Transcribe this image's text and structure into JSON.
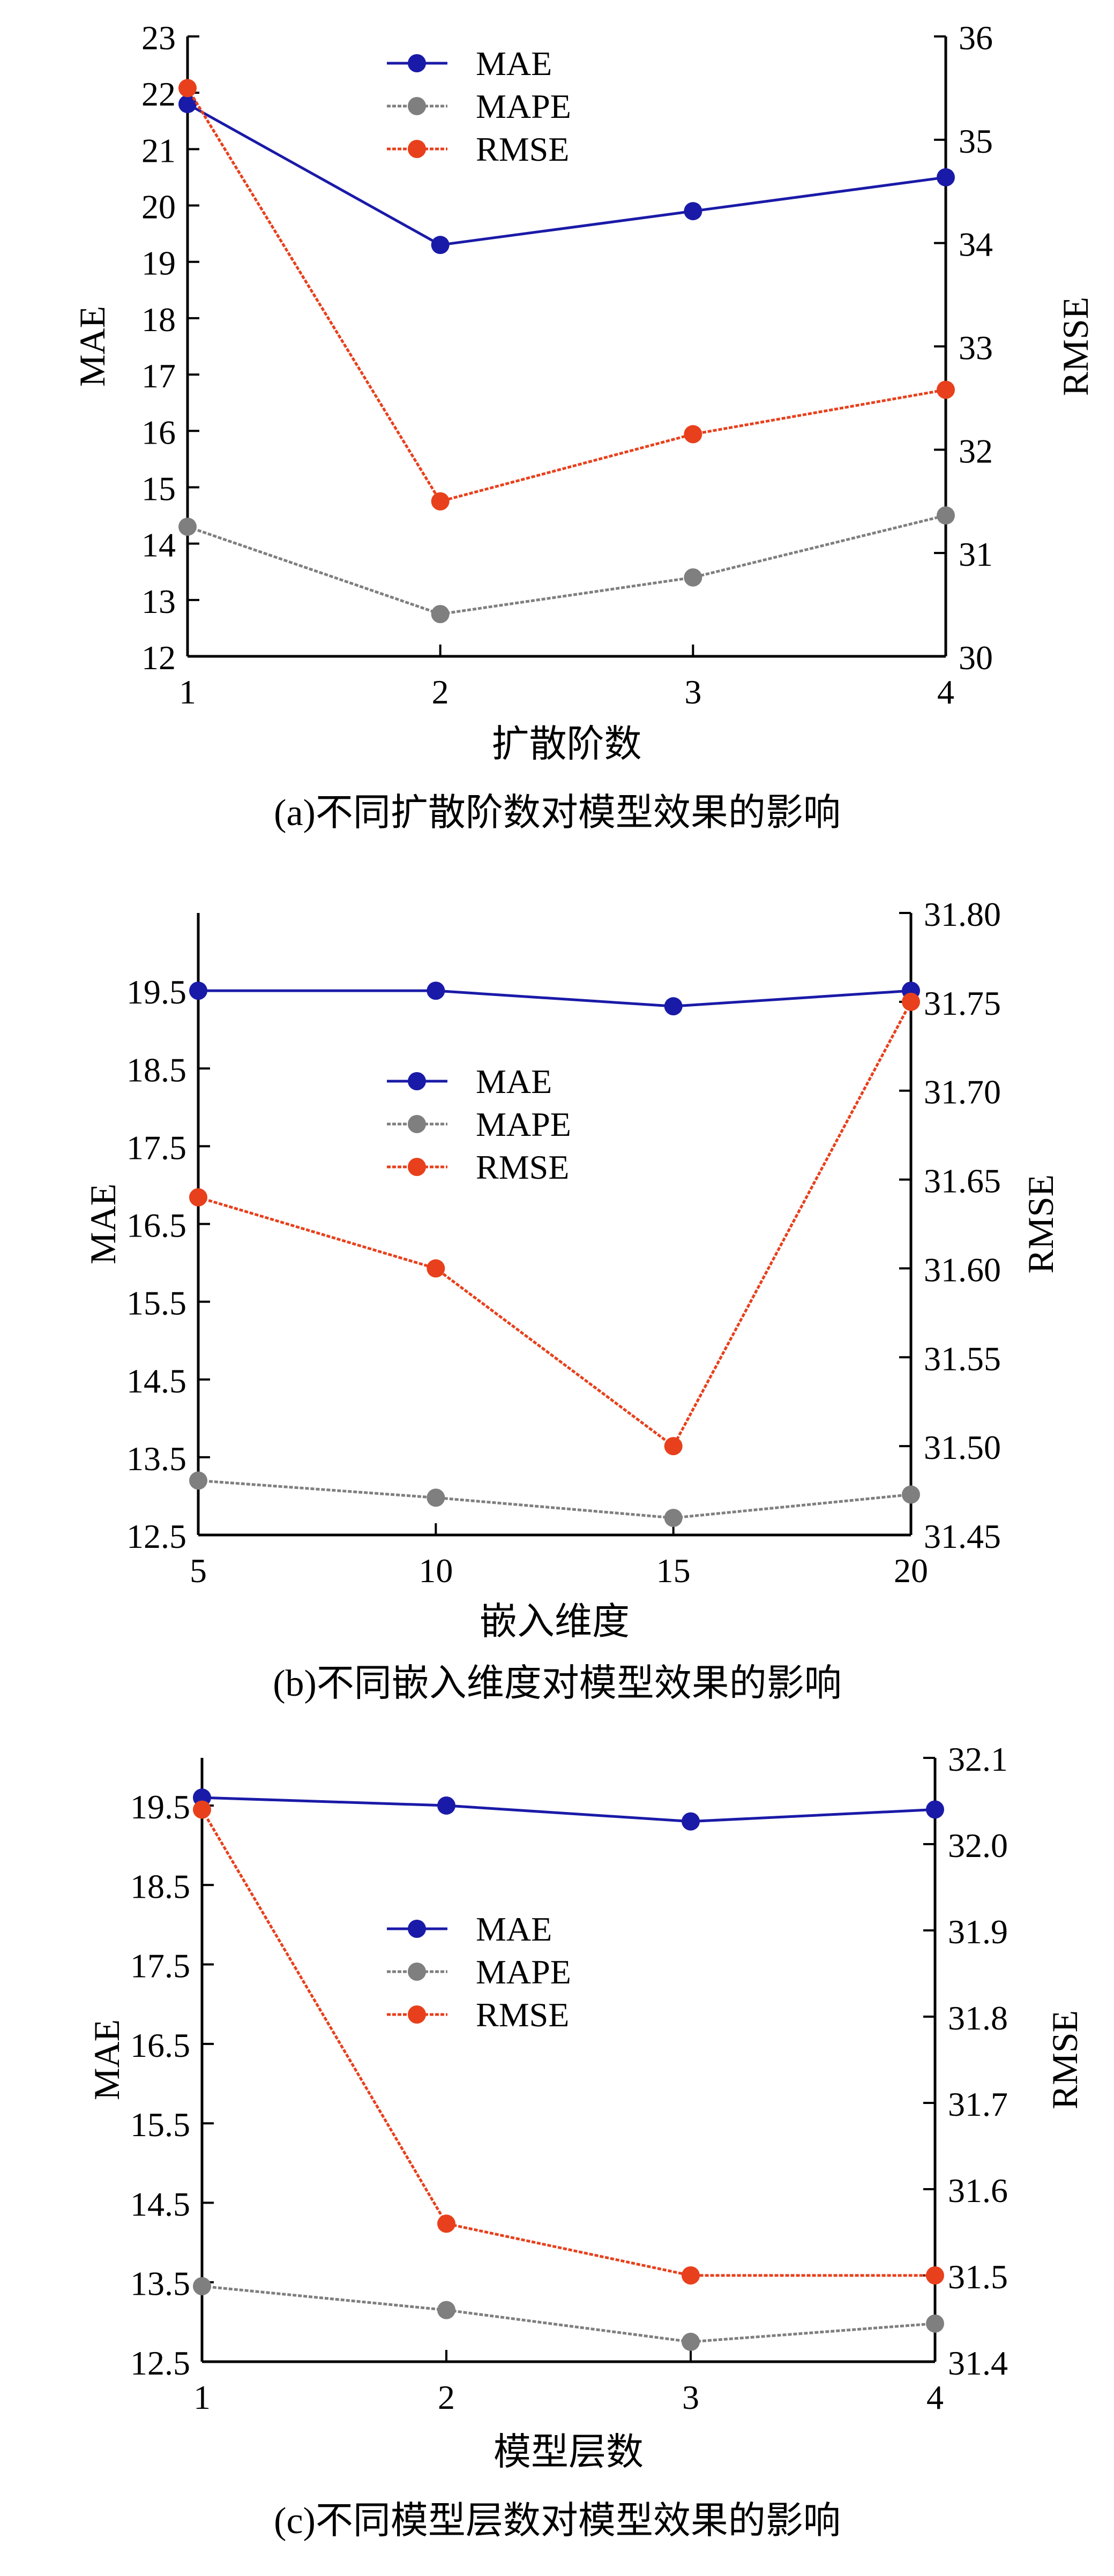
{
  "chart_data": [
    {
      "type": "line",
      "caption": "(a)不同扩散阶数对模型效果的影响",
      "xlabel": "扩散阶数",
      "ylabel": "MAE",
      "y2label": "RMSE",
      "x": [
        1,
        2,
        3,
        4
      ],
      "x_ticks": [
        "1",
        "2",
        "3",
        "4"
      ],
      "ylim": [
        12,
        23
      ],
      "y_ticks": [
        "12",
        "13",
        "14",
        "15",
        "16",
        "17",
        "18",
        "19",
        "20",
        "21",
        "22",
        "23"
      ],
      "y2lim": [
        30,
        36
      ],
      "y2_ticks": [
        "30",
        "31",
        "32",
        "33",
        "34",
        "35",
        "36"
      ],
      "legend_position": "top-center",
      "series": [
        {
          "name": "MAE",
          "axis": "left",
          "color": "#1a1aa8",
          "values": [
            21.8,
            19.3,
            19.9,
            20.5
          ]
        },
        {
          "name": "MAPE",
          "axis": "left",
          "color": "#7f7f7f",
          "values": [
            14.3,
            12.75,
            13.4,
            14.5
          ]
        },
        {
          "name": "RMSE",
          "axis": "right",
          "color": "#e8401c",
          "values": [
            35.5,
            31.5,
            32.15,
            32.58
          ]
        }
      ]
    },
    {
      "type": "line",
      "caption": "(b)不同嵌入维度对模型效果的影响",
      "xlabel": "嵌入维度",
      "ylabel": "MAE",
      "y2label": "RMSE",
      "x": [
        5,
        10,
        15,
        20
      ],
      "x_ticks": [
        "5",
        "10",
        "15",
        "20"
      ],
      "ylim": [
        12.5,
        20.5
      ],
      "y_ticks": [
        "12.5",
        "13.5",
        "14.5",
        "15.5",
        "16.5",
        "17.5",
        "18.5",
        "19.5"
      ],
      "y_tick_values": [
        12.5,
        13.5,
        14.5,
        15.5,
        16.5,
        17.5,
        18.5,
        19.5
      ],
      "y2lim": [
        31.45,
        31.8
      ],
      "y2_ticks": [
        "31.45",
        "31.50",
        "31.55",
        "31.60",
        "31.65",
        "31.70",
        "31.75",
        "31.80"
      ],
      "legend_position": "center",
      "series": [
        {
          "name": "MAE",
          "axis": "left",
          "color": "#1a1aa8",
          "values": [
            19.5,
            19.5,
            19.3,
            19.5
          ]
        },
        {
          "name": "MAPE",
          "axis": "left",
          "color": "#7f7f7f",
          "values": [
            13.2,
            12.98,
            12.72,
            13.02
          ]
        },
        {
          "name": "RMSE",
          "axis": "right",
          "color": "#e8401c",
          "values": [
            31.64,
            31.6,
            31.5,
            31.75
          ]
        }
      ]
    },
    {
      "type": "line",
      "caption": "(c)不同模型层数对模型效果的影响",
      "xlabel": "模型层数",
      "ylabel": "MAE",
      "y2label": "RMSE",
      "x": [
        1,
        2,
        3,
        4
      ],
      "x_ticks": [
        "1",
        "2",
        "3",
        "4"
      ],
      "ylim": [
        12.5,
        20.1
      ],
      "y_ticks": [
        "12.5",
        "13.5",
        "14.5",
        "15.5",
        "16.5",
        "17.5",
        "18.5",
        "19.5"
      ],
      "y_tick_values": [
        12.5,
        13.5,
        14.5,
        15.5,
        16.5,
        17.5,
        18.5,
        19.5
      ],
      "y2lim": [
        31.4,
        32.1
      ],
      "y2_ticks": [
        "31.4",
        "31.5",
        "31.6",
        "31.7",
        "31.8",
        "31.9",
        "32.0",
        "32.1"
      ],
      "legend_position": "center",
      "series": [
        {
          "name": "MAE",
          "axis": "left",
          "color": "#1a1aa8",
          "values": [
            19.6,
            19.5,
            19.3,
            19.45
          ]
        },
        {
          "name": "MAPE",
          "axis": "left",
          "color": "#7f7f7f",
          "values": [
            13.45,
            13.15,
            12.75,
            12.98
          ]
        },
        {
          "name": "RMSE",
          "axis": "right",
          "color": "#e8401c",
          "values": [
            32.04,
            31.56,
            31.5,
            31.5
          ]
        }
      ]
    }
  ]
}
